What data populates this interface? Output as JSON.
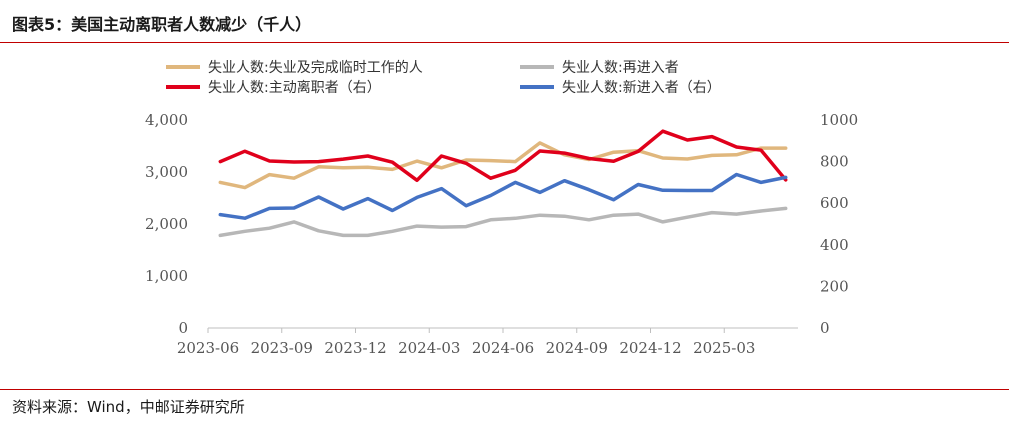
{
  "header": {
    "title": "图表5：美国主动离职者人数减少（千人）"
  },
  "footer": {
    "source": "资料来源：Wind，中邮证券研究所"
  },
  "colors": {
    "rule": "#c00000",
    "quit_total": "#e0b77d",
    "reentrant": "#b7b7b7",
    "job_losers_quit": "#e0001b",
    "new_entrant": "#4472c4",
    "axis": "#bfbfbf",
    "tick_text": "#555555"
  },
  "chart_data": {
    "type": "line",
    "x": [
      "2023-06",
      "2023-07",
      "2023-08",
      "2023-09",
      "2023-10",
      "2023-11",
      "2023-12",
      "2024-01",
      "2024-02",
      "2024-03",
      "2024-04",
      "2024-05",
      "2024-06",
      "2024-07",
      "2024-08",
      "2024-09",
      "2024-10",
      "2024-11",
      "2024-12",
      "2025-01",
      "2025-02",
      "2025-03",
      "2025-04",
      "2025-05"
    ],
    "x_tick_labels": [
      "2023-06",
      "2023-09",
      "2023-12",
      "2024-03",
      "2024-06",
      "2024-09",
      "2024-12",
      "2025-03"
    ],
    "y_left": {
      "lim": [
        0,
        4000
      ],
      "ticks": [
        "0",
        "1,000",
        "2,000",
        "3,000",
        "4,000"
      ]
    },
    "y_right": {
      "lim": [
        0,
        1000
      ],
      "ticks": [
        "0",
        "200",
        "400",
        "600",
        "800",
        "1000"
      ]
    },
    "grid": false,
    "legend_position": "top",
    "series": [
      {
        "name": "失业人数:失业及完成临时工作的人",
        "axis": "left",
        "color": "#e0b77d",
        "values": [
          2800,
          2700,
          2950,
          2880,
          3100,
          3080,
          3090,
          3050,
          3210,
          3080,
          3230,
          3220,
          3200,
          3560,
          3330,
          3240,
          3380,
          3410,
          3270,
          3250,
          3320,
          3330,
          3460,
          3460
        ]
      },
      {
        "name": "失业人数:再进入者",
        "axis": "left",
        "color": "#b7b7b7",
        "values": [
          1780,
          1860,
          1920,
          2040,
          1870,
          1780,
          1780,
          1860,
          1960,
          1940,
          1950,
          2080,
          2110,
          2170,
          2150,
          2080,
          2170,
          2190,
          2040,
          2130,
          2220,
          2190,
          2250,
          2300
        ]
      },
      {
        "name": "失业人数:主动离职者（右）",
        "axis": "right",
        "color": "#e0001b",
        "values": [
          800,
          850,
          803,
          798,
          800,
          812,
          827,
          797,
          710,
          827,
          792,
          720,
          758,
          851,
          841,
          815,
          802,
          849,
          946,
          904,
          920,
          870,
          855,
          712
        ]
      },
      {
        "name": "失业人数:新进入者（右）",
        "axis": "right",
        "color": "#4472c4",
        "values": [
          545,
          528,
          575,
          577,
          630,
          572,
          622,
          565,
          628,
          670,
          588,
          637,
          700,
          652,
          708,
          665,
          617,
          690,
          662,
          661,
          661,
          738,
          700,
          724
        ]
      }
    ]
  }
}
